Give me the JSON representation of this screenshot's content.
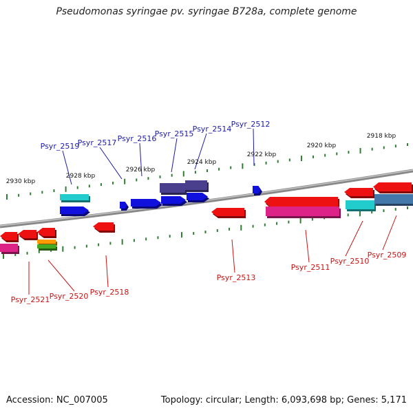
{
  "title": "Pseudomonas syringae pv. syringae B728a, complete genome",
  "footer": {
    "accession": "Accession: NC_007005",
    "topology": "Topology: circular; Length: 6,093,698 bp; Genes: 5,171"
  },
  "colors": {
    "backbone": "#888888",
    "tick": "#2e7d32",
    "plus_label": "#1a1aaa",
    "minus_label": "#cc1111",
    "red_gene": "#ee1111",
    "blue_gene": "#1111dd",
    "navy_gene": "#4a3f8c",
    "cyan_gene": "#22cccc",
    "magenta_gene": "#dd2288",
    "steel_gene": "#4477aa",
    "orange_gene": "#ff9900",
    "green_gene": "#44aa22"
  },
  "kbp_labels": [
    "2930 kbp",
    "2928 kbp",
    "2926 kbp",
    "2924 kbp",
    "2922 kbp",
    "2920 kbp",
    "2918 kbp"
  ],
  "gene_labels": {
    "plus": [
      "Psyr_2519",
      "Psyr_2517",
      "Psyr_2516",
      "Psyr_2515",
      "Psyr_2514",
      "Psyr_2512"
    ],
    "minus": [
      "Psyr_2521",
      "Psyr_2520",
      "Psyr_2518",
      "Psyr_2513",
      "Psyr_2511",
      "Psyr_2510",
      "Psyr_2509"
    ]
  }
}
